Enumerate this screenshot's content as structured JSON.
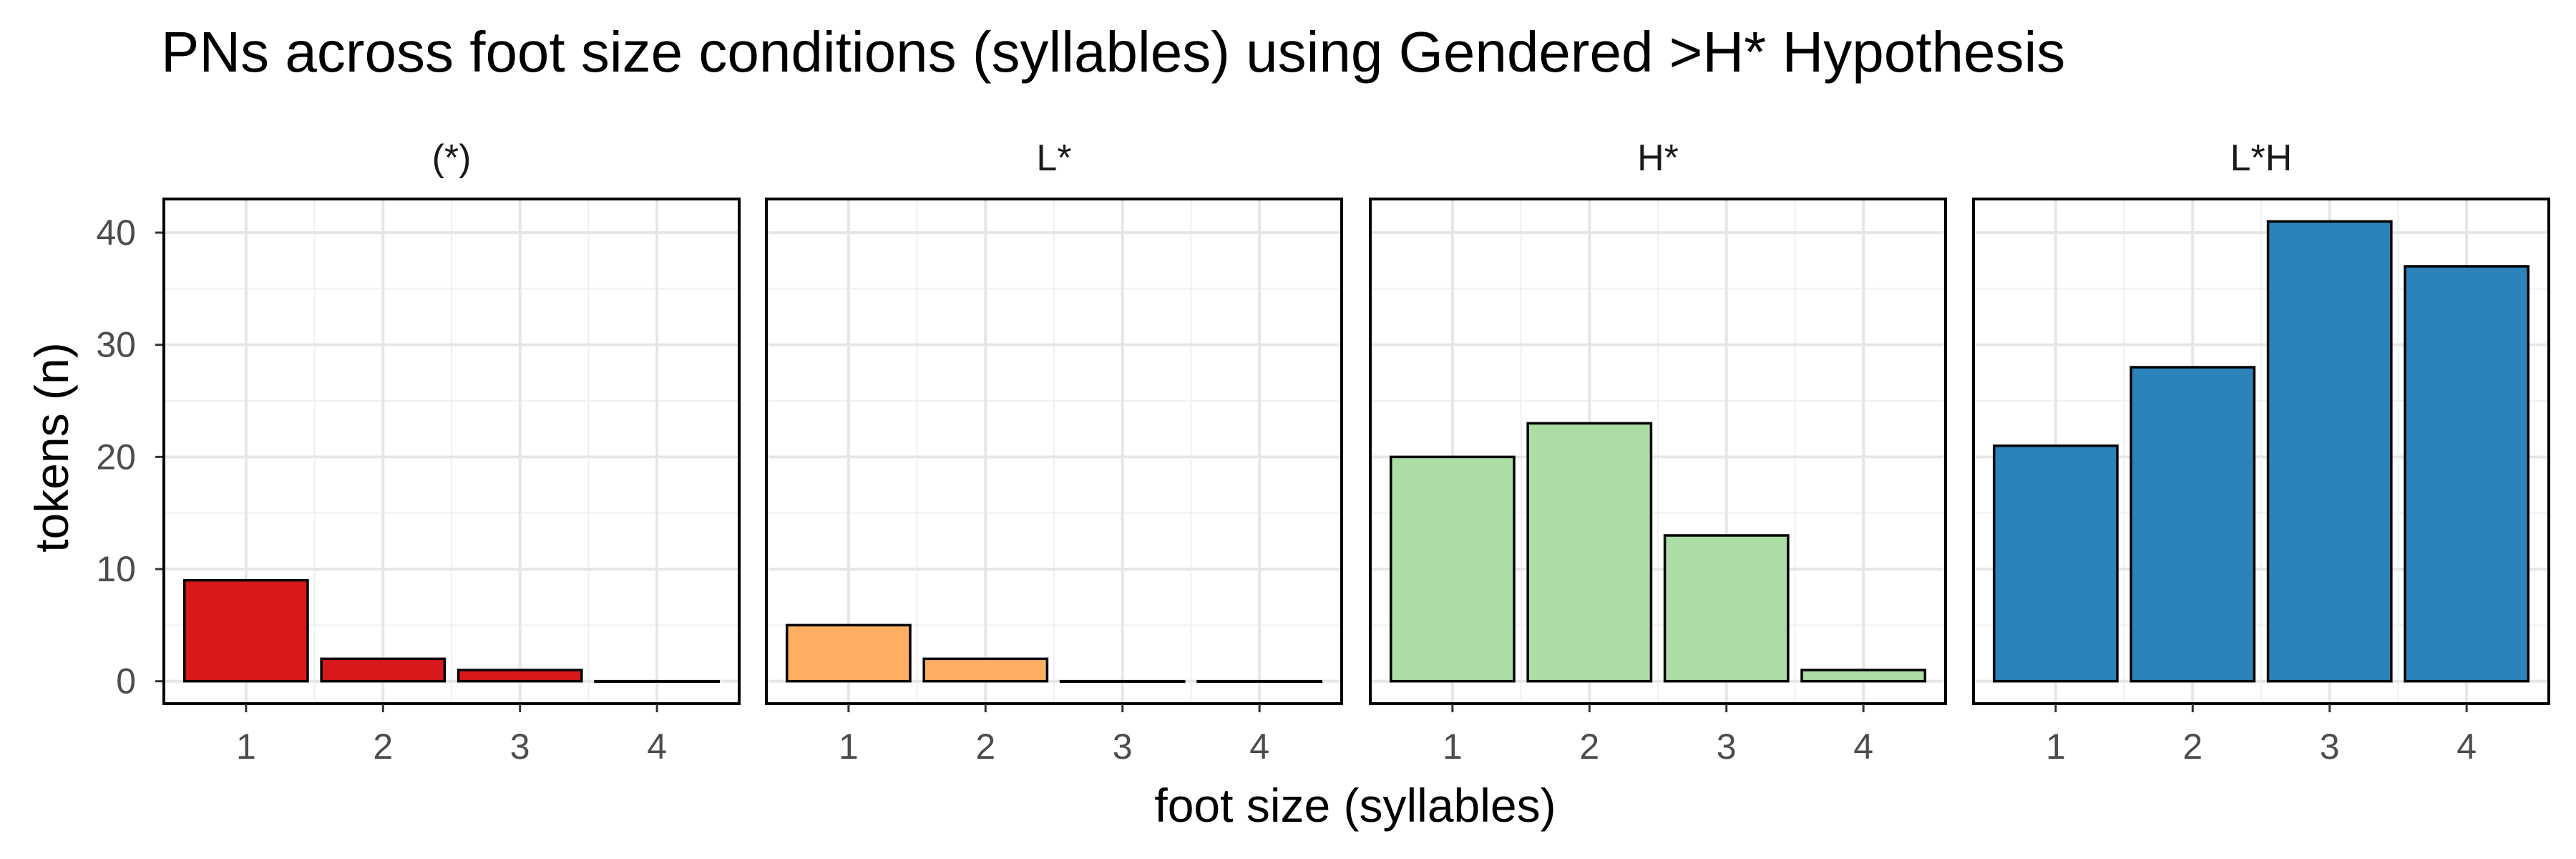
{
  "chart_data": {
    "type": "bar",
    "title": "PNs across foot size conditions (syllables) using Gendered >H* Hypothesis",
    "xlabel": "foot size (syllables)",
    "ylabel": "tokens (n)",
    "categories": [
      "1",
      "2",
      "3",
      "4"
    ],
    "ylim": [
      -2,
      43
    ],
    "y_ticks": [
      0,
      10,
      20,
      30,
      40
    ],
    "grid": true,
    "facets": [
      {
        "name": "(*)",
        "color": "#d7191c",
        "values": [
          9,
          2,
          1,
          0
        ]
      },
      {
        "name": "L*",
        "color": "#fdae61",
        "values": [
          5,
          2,
          0,
          0
        ]
      },
      {
        "name": "H*",
        "color": "#abdda4",
        "values": [
          20,
          23,
          13,
          1
        ]
      },
      {
        "name": "L*H",
        "color": "#2b83ba",
        "values": [
          21,
          28,
          41,
          37
        ]
      }
    ]
  }
}
